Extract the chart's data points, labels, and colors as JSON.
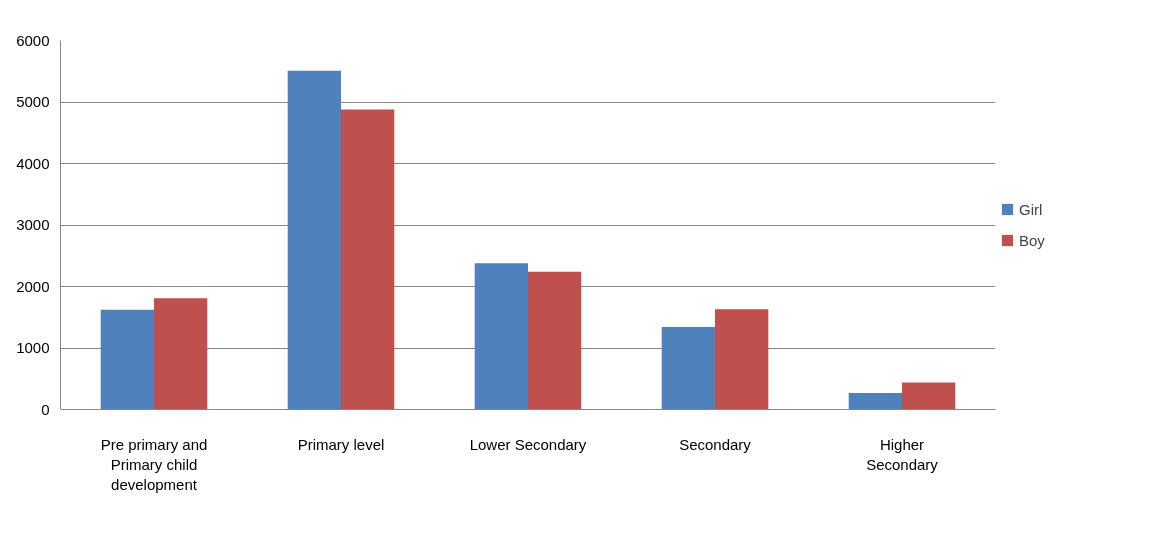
{
  "chart_data": {
    "type": "bar",
    "categories": [
      "Pre primary and Primary child development",
      "Primary level",
      "Lower Secondary",
      "Secondary",
      "Higher Secondary"
    ],
    "series": [
      {
        "name": "Girl",
        "color": "#4f81bd",
        "values": [
          1620,
          5510,
          2380,
          1340,
          270
        ]
      },
      {
        "name": "Boy",
        "color": "#c0504d",
        "values": [
          1810,
          4880,
          2240,
          1630,
          440
        ]
      }
    ],
    "ylim": [
      0,
      6000
    ],
    "yticks": [
      0,
      1000,
      2000,
      3000,
      4000,
      5000,
      6000
    ],
    "grid": "y",
    "legend": "right"
  }
}
